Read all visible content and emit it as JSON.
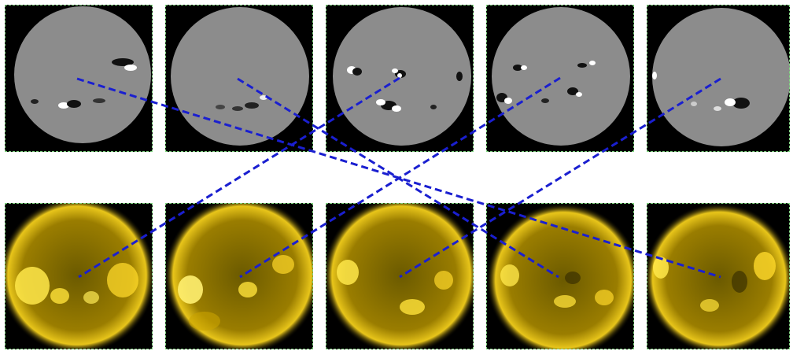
{
  "figure": {
    "top_row": {
      "kind": "magnetogram",
      "disk_color": "#8c8c8c",
      "background_color": "#000000",
      "panels": 5
    },
    "bottom_row": {
      "kind": "euv-corona",
      "core_color": "#b59400",
      "glow_color": "#ffe23a",
      "background_color": "#000000",
      "panels": 5
    },
    "connections": {
      "color": "#1a1fd0",
      "style": "dashed",
      "pairs": [
        {
          "from_top": 1,
          "to_bottom": 5
        },
        {
          "from_top": 2,
          "to_bottom": 4
        },
        {
          "from_top": 3,
          "to_bottom": 1
        },
        {
          "from_top": 4,
          "to_bottom": 2
        },
        {
          "from_top": 5,
          "to_bottom": 3
        }
      ]
    },
    "panel_border_color": "#7fd37f"
  }
}
